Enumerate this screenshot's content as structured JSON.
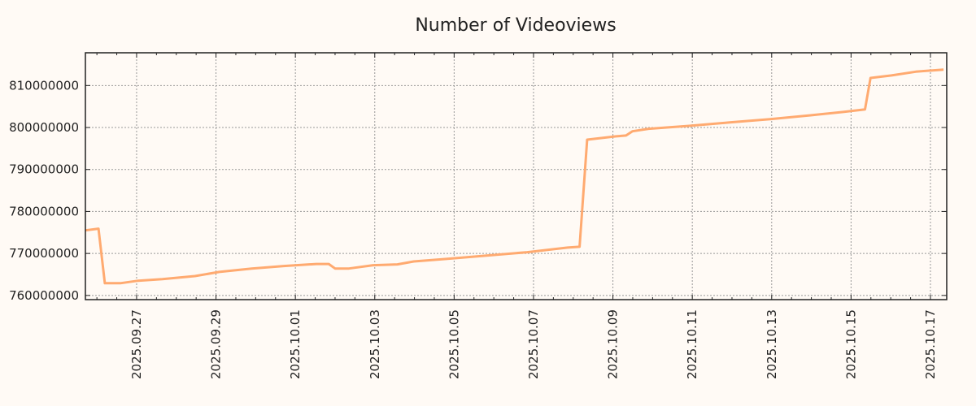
{
  "chart_data": {
    "type": "line",
    "title": "Number of Videoviews",
    "xlabel": "",
    "ylabel": "",
    "x_unit": "days since 2025-09-27",
    "xlim": [
      -1.29,
      20.41
    ],
    "ylim": [
      759000000,
      817800000
    ],
    "grid": true,
    "x_ticks": [
      {
        "value": 0,
        "label": "2025.09.27"
      },
      {
        "value": 2,
        "label": "2025.09.29"
      },
      {
        "value": 4,
        "label": "2025.10.01"
      },
      {
        "value": 6,
        "label": "2025.10.03"
      },
      {
        "value": 8,
        "label": "2025.10.05"
      },
      {
        "value": 10,
        "label": "2025.10.07"
      },
      {
        "value": 12,
        "label": "2025.10.09"
      },
      {
        "value": 14,
        "label": "2025.10.11"
      },
      {
        "value": 16,
        "label": "2025.10.13"
      },
      {
        "value": 18,
        "label": "2025.10.15"
      },
      {
        "value": 20,
        "label": "2025.10.17"
      }
    ],
    "y_ticks": [
      {
        "value": 760000000,
        "label": "760000000"
      },
      {
        "value": 770000000,
        "label": "770000000"
      },
      {
        "value": 780000000,
        "label": "780000000"
      },
      {
        "value": 790000000,
        "label": "790000000"
      },
      {
        "value": 800000000,
        "label": "800000000"
      },
      {
        "value": 810000000,
        "label": "810000000"
      }
    ],
    "series": [
      {
        "name": "Videoviews",
        "color": "#ffaa70",
        "x": [
          -1.29,
          -0.96,
          -0.8,
          -0.41,
          0.04,
          0.65,
          1.47,
          2.08,
          2.9,
          3.71,
          4.53,
          4.84,
          5.0,
          5.35,
          5.96,
          6.57,
          6.98,
          7.8,
          8.82,
          9.84,
          10.86,
          11.16,
          11.35,
          12.08,
          12.33,
          12.49,
          12.9,
          13.92,
          14.94,
          15.96,
          16.98,
          17.8,
          18.35,
          18.49,
          19.02,
          19.63,
          20.33
        ],
        "y": [
          775500000,
          775900000,
          762900000,
          762900000,
          763500000,
          763900000,
          764600000,
          765600000,
          766400000,
          767000000,
          767500000,
          767500000,
          766400000,
          766400000,
          767200000,
          767400000,
          768100000,
          768700000,
          769500000,
          770300000,
          771400000,
          771600000,
          797100000,
          797900000,
          798100000,
          799100000,
          799700000,
          800400000,
          801200000,
          802000000,
          802900000,
          803700000,
          804300000,
          811800000,
          812400000,
          813300000,
          813800000
        ]
      }
    ]
  }
}
